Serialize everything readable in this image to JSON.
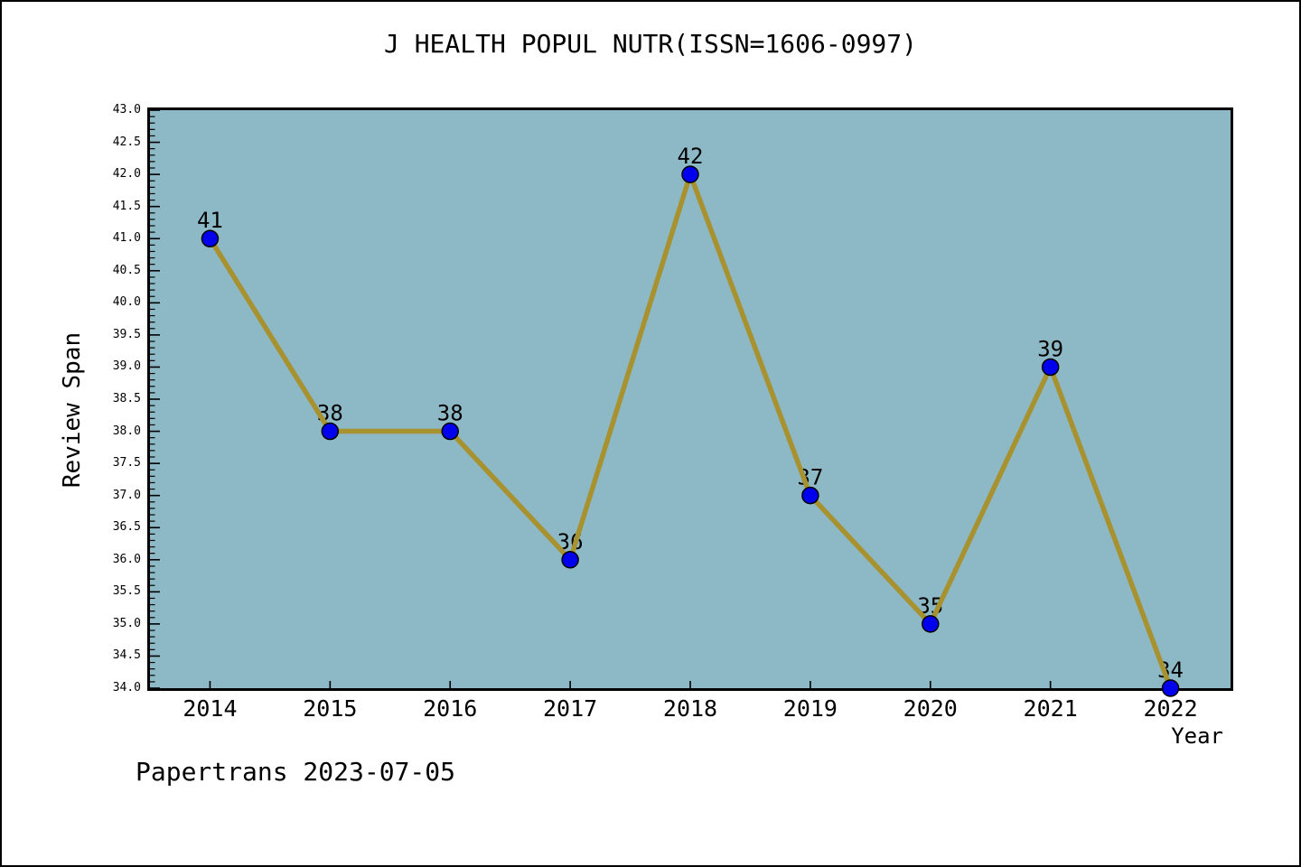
{
  "footer": {
    "watermark": "Papertrans 2023-07-05"
  },
  "chart_data": {
    "type": "line",
    "title": "J HEALTH POPUL NUTR(ISSN=1606-0997)",
    "xlabel": "Year",
    "ylabel": "Review Span",
    "categories": [
      2014,
      2015,
      2016,
      2017,
      2018,
      2019,
      2020,
      2021,
      2022
    ],
    "x_tick_labels": [
      "2014",
      "2015",
      "2016",
      "2017",
      "2018",
      "2019",
      "2020",
      "2021",
      "2022"
    ],
    "values": [
      41,
      38,
      38,
      36,
      42,
      37,
      35,
      39,
      34
    ],
    "point_labels": [
      "41",
      "38",
      "38",
      "36",
      "42",
      "37",
      "35",
      "39",
      "34"
    ],
    "xlim": [
      2013.5,
      2022.5
    ],
    "ylim": [
      34.0,
      43.0
    ],
    "y_major_step": 0.5,
    "y_minor_step": 0.1,
    "y_tick_labels": [
      "34.0",
      "34.5",
      "35.0",
      "35.5",
      "36.0",
      "36.5",
      "37.0",
      "37.5",
      "38.0",
      "38.5",
      "39.0",
      "39.5",
      "40.0",
      "40.5",
      "41.0",
      "41.5",
      "42.0",
      "42.5",
      "43.0"
    ],
    "grid": false,
    "legend_position": "none",
    "styles": {
      "plot_bg": "#8db8c5",
      "line_color": "#a8922f",
      "marker_color": "#0000ee",
      "marker_edge": "#000000",
      "axis_color": "#000000",
      "line_width": 5.5,
      "marker_radius": 9
    }
  }
}
